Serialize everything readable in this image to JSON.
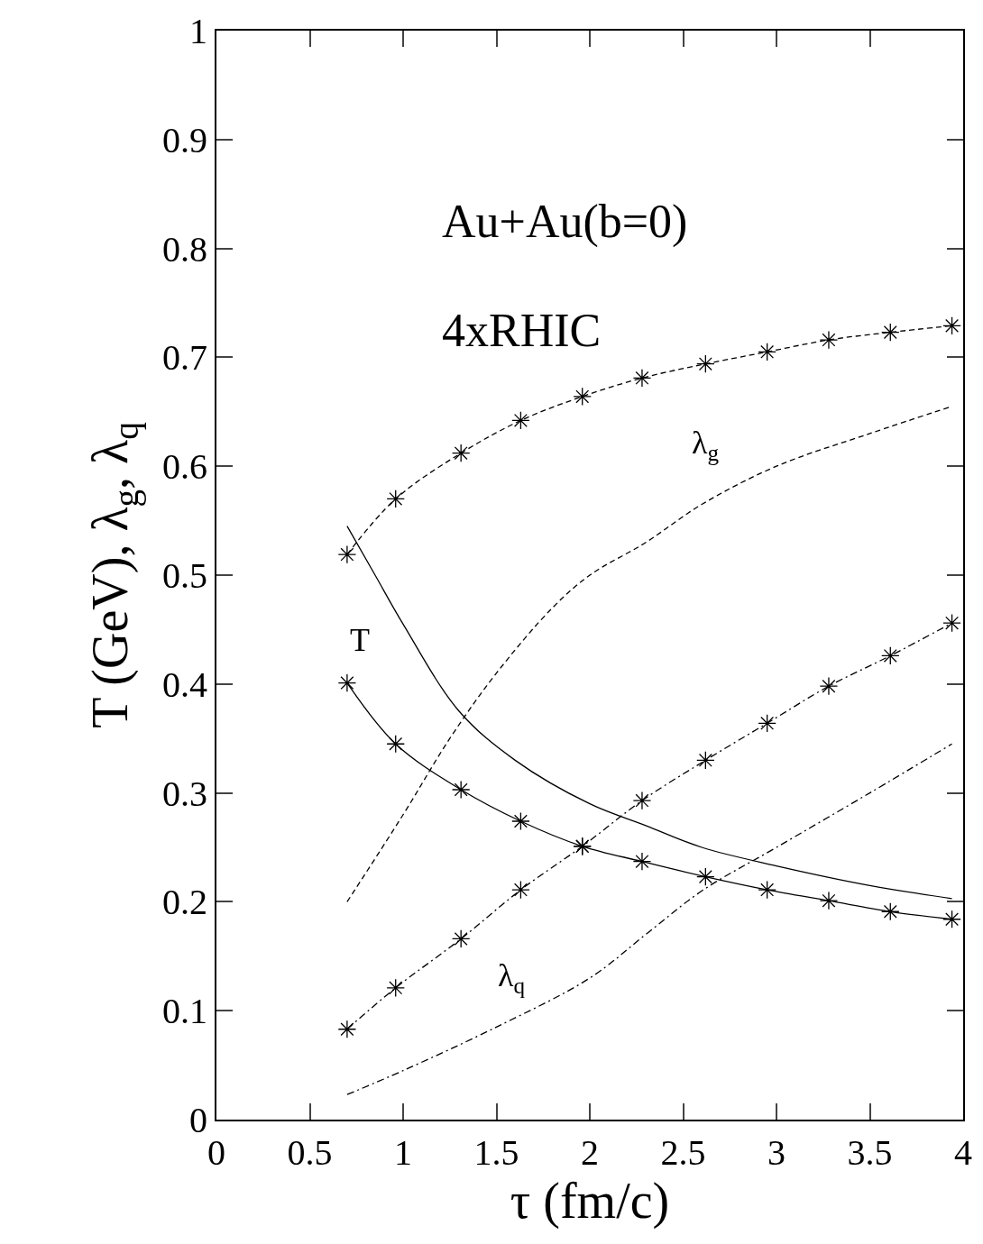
{
  "chart_data": {
    "type": "line",
    "xlabel": "τ (fm/c)",
    "ylabel": "T (GeV), λ$_{g}$, λ$_{q}$",
    "xlim": [
      0,
      4
    ],
    "ylim": [
      0,
      1
    ],
    "xticks": [
      0,
      0.5,
      1,
      1.5,
      2,
      2.5,
      3,
      3.5,
      4
    ],
    "yticks": [
      0,
      0.1,
      0.2,
      0.3,
      0.4,
      0.5,
      0.6,
      0.7,
      0.8,
      0.9,
      1
    ],
    "series": [
      {
        "color": "#000000",
        "marker": "cross",
        "line_style": "dashed",
        "x": [
          0.7,
          0.96,
          1.31,
          1.63,
          1.96,
          2.28,
          2.62,
          2.95,
          3.28,
          3.61,
          3.94
        ],
        "values": [
          0.519,
          0.57,
          0.612,
          0.642,
          0.664,
          0.681,
          0.694,
          0.705,
          0.716,
          0.723,
          0.729
        ]
      },
      {
        "color": "#000000",
        "marker": "cross",
        "line_style": "solid",
        "x": [
          0.7,
          0.96,
          1.31,
          1.63,
          1.96,
          2.28,
          2.62,
          2.95,
          3.28,
          3.61,
          3.94
        ],
        "values": [
          0.401,
          0.345,
          0.303,
          0.274,
          0.251,
          0.237,
          0.223,
          0.211,
          0.201,
          0.191,
          0.184
        ]
      },
      {
        "color": "#000000",
        "marker": "cross",
        "line_style": "dashdot",
        "x": [
          0.7,
          0.96,
          1.31,
          1.63,
          1.96,
          2.28,
          2.62,
          2.95,
          3.28,
          3.61,
          3.94
        ],
        "values": [
          0.083,
          0.121,
          0.166,
          0.211,
          0.251,
          0.293,
          0.33,
          0.364,
          0.398,
          0.426,
          0.456
        ]
      },
      {
        "color": "#000000",
        "marker": "none",
        "line_style": "dashed",
        "x": [
          0.7,
          1.0,
          1.25,
          1.5,
          1.8,
          2.0,
          2.3,
          2.6,
          3.0,
          3.5,
          3.94
        ],
        "values": [
          0.2,
          0.28,
          0.35,
          0.41,
          0.47,
          0.5,
          0.53,
          0.565,
          0.6,
          0.63,
          0.655
        ]
      },
      {
        "color": "#000000",
        "marker": "none",
        "line_style": "solid",
        "x": [
          0.7,
          0.85,
          1.0,
          1.3,
          1.6,
          2.0,
          2.3,
          2.6,
          3.0,
          3.5,
          3.94
        ],
        "values": [
          0.545,
          0.5,
          0.455,
          0.375,
          0.33,
          0.29,
          0.27,
          0.25,
          0.233,
          0.215,
          0.203
        ]
      },
      {
        "color": "#000000",
        "marker": "none",
        "line_style": "dashdot",
        "x": [
          0.7,
          1.0,
          1.5,
          2.0,
          2.3,
          2.6,
          3.0,
          3.5,
          3.94
        ],
        "values": [
          0.023,
          0.045,
          0.085,
          0.13,
          0.17,
          0.21,
          0.25,
          0.3,
          0.345
        ]
      }
    ],
    "annotations": [
      "Au+Au(b=0)",
      "4xRHIC",
      "λ$_{g}$",
      "T",
      "λ$_{q}$"
    ]
  }
}
